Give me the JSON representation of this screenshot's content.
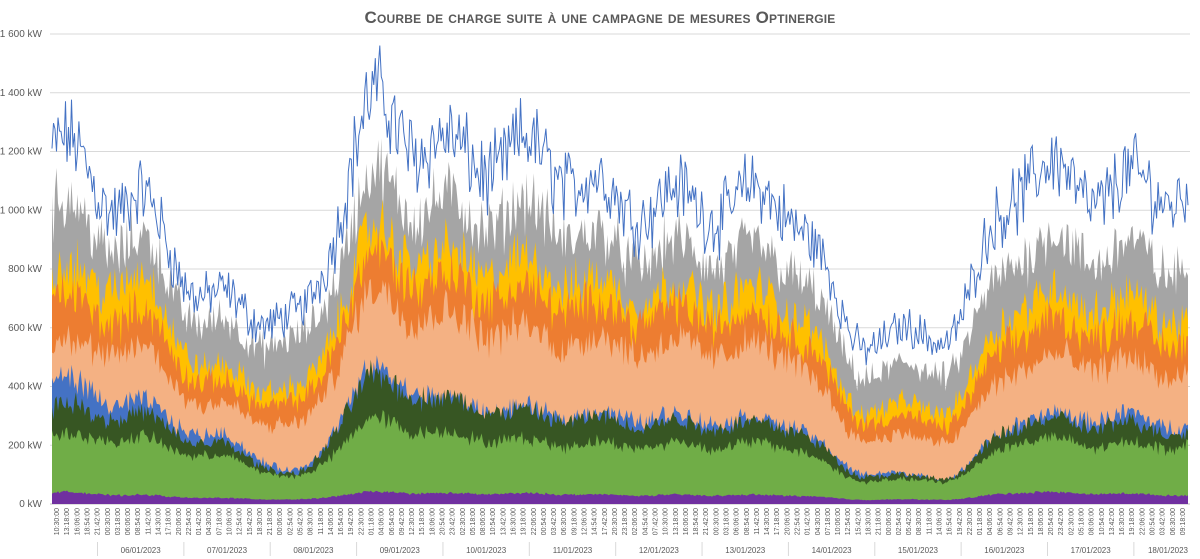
{
  "chart_data": {
    "type": "area",
    "title": "Courbe de charge suite à une campagne de mesures Optinergie",
    "xlabel": "",
    "ylabel": "",
    "ylim": [
      0,
      1600
    ],
    "y_ticks": [
      "0 kW",
      "200 kW",
      "400 kW",
      "600 kW",
      "800 kW",
      "1 000 kW",
      "1 200 kW",
      "1 400 kW",
      "1 600 kW"
    ],
    "grid": true,
    "legend": "none",
    "date_labels": [
      "06/01/2023",
      "07/01/2023",
      "08/01/2023",
      "09/01/2023",
      "10/01/2023",
      "11/01/2023",
      "12/01/2023",
      "13/01/2023",
      "14/01/2023",
      "15/01/2023",
      "16/01/2023",
      "17/01/2023",
      "18/01/2023"
    ],
    "time_labels": [
      "10:30:00",
      "13:18:00",
      "16:06:00",
      "18:54:00",
      "21:42:00",
      "00:30:00",
      "03:18:00",
      "06:06:00",
      "08:54:00",
      "11:42:00",
      "14:30:00",
      "17:18:00",
      "20:06:00",
      "22:54:00",
      "01:42:00",
      "04:30:00",
      "07:18:00",
      "10:06:00",
      "12:54:00",
      "15:42:00",
      "18:30:00",
      "21:18:00",
      "00:06:00",
      "02:54:00",
      "05:42:00",
      "08:30:00",
      "11:18:00",
      "14:06:00",
      "16:54:00",
      "19:42:00",
      "22:30:00",
      "01:18:00",
      "04:06:00",
      "06:54:00",
      "09:42:00",
      "12:30:00",
      "15:18:00",
      "18:06:00",
      "20:54:00",
      "23:42:00",
      "02:30:00",
      "05:18:00",
      "08:06:00",
      "10:54:00",
      "13:42:00",
      "16:30:00",
      "19:18:00",
      "22:06:00",
      "00:54:00",
      "03:42:00",
      "06:30:00",
      "09:18:00",
      "12:06:00",
      "14:54:00",
      "17:42:00",
      "20:30:00",
      "23:18:00",
      "02:06:00",
      "04:54:00",
      "07:42:00",
      "10:30:00",
      "13:18:00",
      "16:06:00",
      "18:54:00",
      "21:42:00",
      "00:30:00",
      "03:18:00",
      "06:06:00",
      "08:54:00",
      "11:42:00",
      "14:30:00",
      "17:18:00",
      "20:06:00",
      "22:54:00",
      "01:42:00",
      "04:30:00",
      "07:18:00",
      "10:06:00",
      "12:54:00",
      "15:42:00",
      "18:30:00",
      "21:18:00",
      "00:06:00",
      "02:54:00",
      "05:42:00",
      "08:30:00",
      "11:18:00",
      "14:06:00",
      "16:54:00",
      "19:42:00",
      "22:30:00",
      "01:18:00",
      "04:06:00",
      "06:54:00",
      "09:42:00",
      "12:30:00",
      "15:18:00",
      "18:06:00",
      "20:54:00",
      "23:42:00",
      "02:30:00",
      "05:18:00",
      "08:06:00",
      "10:54:00",
      "13:42:00",
      "16:30:00",
      "19:18:00",
      "22:06:00",
      "00:54:00",
      "03:42:00",
      "06:30:00",
      "09:18:00"
    ],
    "series_colors": {
      "total": "#4472C4",
      "gray": "#A5A5A5",
      "yellow": "#FFC000",
      "orange": "#ED7D31",
      "light_orange": "#F4B183",
      "blue": "#4472C4",
      "dark_green": "#375623",
      "green": "#70AD47",
      "purple": "#7030A0"
    },
    "series": [
      {
        "key": "total",
        "kind": "line",
        "levels": [
          1200,
          1020,
          690,
          620,
          1330,
          1180,
          1180,
          1030,
          1020,
          1030,
          560,
          580,
          1120,
          1070,
          1080
        ]
      },
      {
        "key": "gray",
        "kind": "area",
        "levels": [
          1000,
          880,
          600,
          540,
          1080,
          990,
          980,
          860,
          850,
          840,
          450,
          460,
          880,
          860,
          820
        ]
      },
      {
        "key": "yellow",
        "kind": "area",
        "levels": [
          780,
          760,
          450,
          380,
          900,
          820,
          800,
          720,
          710,
          700,
          330,
          330,
          700,
          690,
          640
        ]
      },
      {
        "key": "orange",
        "kind": "area",
        "levels": [
          680,
          640,
          400,
          330,
          820,
          740,
          700,
          650,
          640,
          620,
          290,
          280,
          600,
          600,
          560
        ]
      },
      {
        "key": "light_orange",
        "kind": "area",
        "levels": [
          540,
          520,
          330,
          260,
          700,
          620,
          570,
          540,
          530,
          520,
          230,
          220,
          480,
          480,
          440
        ]
      },
      {
        "key": "blue",
        "kind": "area",
        "levels": [
          420,
          340,
          230,
          110,
          440,
          340,
          310,
          300,
          290,
          280,
          110,
          90,
          290,
          300,
          270
        ]
      },
      {
        "key": "dark_green",
        "kind": "area",
        "levels": [
          330,
          300,
          200,
          100,
          420,
          340,
          300,
          280,
          270,
          270,
          100,
          90,
          280,
          270,
          250
        ]
      },
      {
        "key": "green",
        "kind": "area",
        "levels": [
          230,
          220,
          160,
          90,
          280,
          230,
          210,
          200,
          200,
          200,
          80,
          80,
          220,
          200,
          200
        ]
      },
      {
        "key": "purple",
        "kind": "area",
        "levels": [
          40,
          30,
          20,
          15,
          40,
          35,
          35,
          30,
          30,
          30,
          15,
          15,
          40,
          35,
          30
        ]
      }
    ]
  }
}
